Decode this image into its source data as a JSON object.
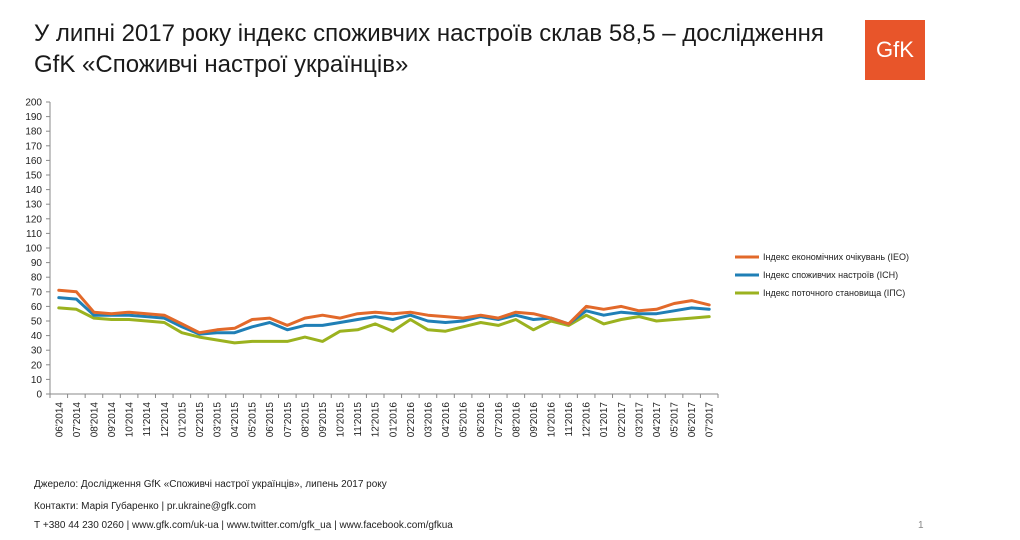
{
  "title": "У липні 2017 року індекс споживчих настроїв склав 58,5 – дослідження GfK «Споживчі настрої українців»",
  "logo_text": "GfK",
  "colors": {
    "logo_bg": "#e8552a",
    "ieo": "#e2692a",
    "isn": "#1f7fb6",
    "ips": "#9bb21f",
    "axis": "#888888"
  },
  "chart_data": {
    "type": "line",
    "ylim": [
      0,
      200
    ],
    "ytick_step": 10,
    "categories": [
      "06'2014",
      "07'2014",
      "08'2014",
      "09'2014",
      "10'2014",
      "11'2014",
      "12'2014",
      "01'2015",
      "02'2015",
      "03'2015",
      "04'2015",
      "05'2015",
      "06'2015",
      "07'2015",
      "08'2015",
      "09'2015",
      "10'2015",
      "11'2015",
      "12'2015",
      "01'2016",
      "02'2016",
      "03'2016",
      "04'2016",
      "05'2016",
      "06'2016",
      "07'2016",
      "08'2016",
      "09'2016",
      "10'2016",
      "11'2016",
      "12'2016",
      "01'2017",
      "02'2017",
      "03'2017",
      "04'2017",
      "05'2017",
      "06'2017",
      "07'2017"
    ],
    "series": [
      {
        "name": "Індекс економічних очікувань (IEO)",
        "color": "#e2692a",
        "values": [
          71,
          70,
          56,
          55,
          56,
          55,
          54,
          48,
          42,
          44,
          45,
          51,
          52,
          47,
          52,
          54,
          52,
          55,
          56,
          55,
          56,
          54,
          53,
          52,
          54,
          52,
          56,
          55,
          52,
          48,
          60,
          58,
          60,
          57,
          58,
          62,
          64,
          61
        ]
      },
      {
        "name": "Індекс споживчих настроїв (ІСН)",
        "color": "#1f7fb6",
        "values": [
          66,
          65,
          54,
          54,
          54,
          53,
          52,
          46,
          41,
          42,
          42,
          46,
          49,
          44,
          47,
          47,
          49,
          51,
          53,
          51,
          54,
          50,
          49,
          50,
          53,
          51,
          54,
          51,
          52,
          48,
          57,
          54,
          56,
          55,
          55,
          57,
          59,
          58
        ]
      },
      {
        "name": "Індекс поточного становища (ІПС)",
        "color": "#9bb21f",
        "values": [
          59,
          58,
          52,
          51,
          51,
          50,
          49,
          42,
          39,
          37,
          35,
          36,
          36,
          36,
          39,
          36,
          43,
          44,
          48,
          43,
          51,
          44,
          43,
          46,
          49,
          47,
          51,
          44,
          50,
          47,
          54,
          48,
          51,
          53,
          50,
          51,
          52,
          53
        ]
      }
    ],
    "legend_position": "right"
  },
  "footer": {
    "source": "Джерело: Дослідження GfK «Споживчі настрої українців», липень 2017 року",
    "contacts": "Контакти: Марія Губаренко | pr.ukraine@gfk.com",
    "links": "Т +380 44 230 0260 | www.gfk.com/uk-ua | www.twitter.com/gfk_ua | www.facebook.com/gfkua"
  },
  "page_number": "1"
}
